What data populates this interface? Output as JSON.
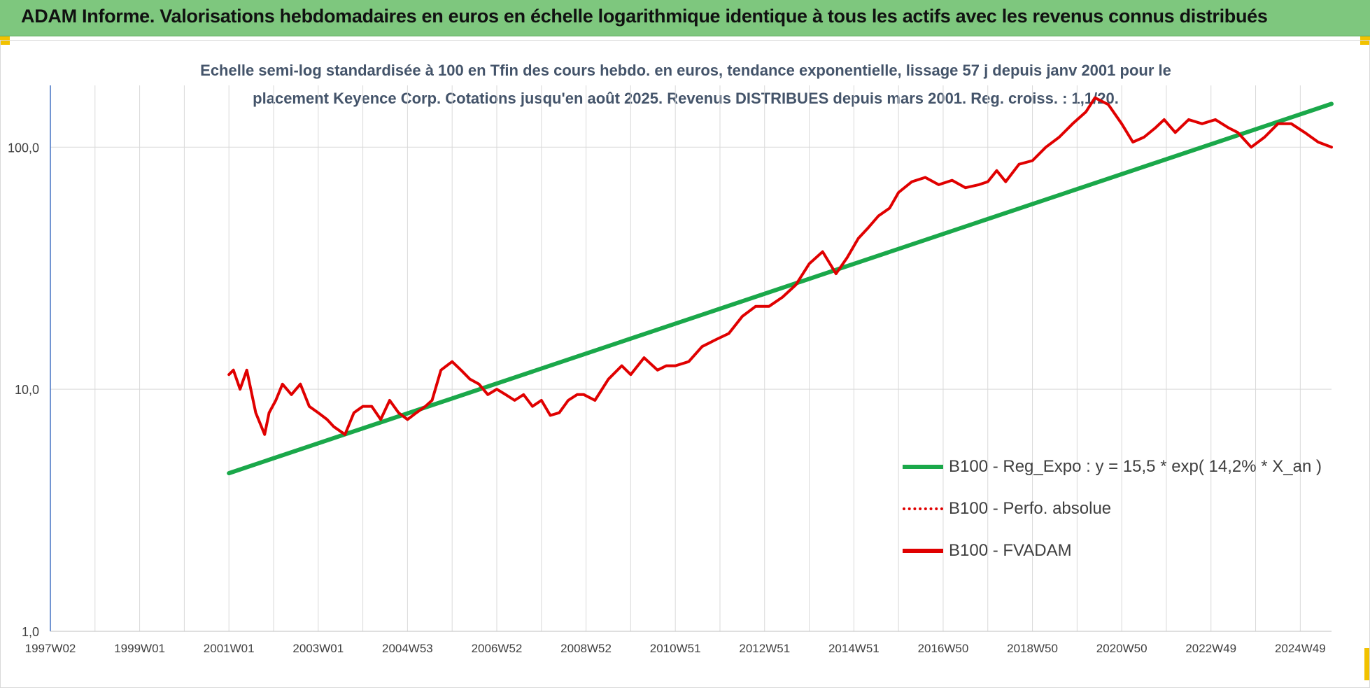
{
  "header": {
    "title": "ADAM Informe. Valorisations hebdomadaires en euros en échelle logarithmique identique à tous les actifs avec les revenus connus distribués"
  },
  "chart_data": {
    "type": "line",
    "title_line1": "Echelle semi-log standardisée à 100 en Tfin des cours hebdo. en euros, tendance exponentielle, lissage 57 j depuis janv 2001 pour le",
    "title_line2": "placement Keyence Corp. Cotations jusqu'en août 2025. Revenus DISTRIBUES depuis mars 2001. Reg. croiss. : 1,1/20.",
    "y_scale": "log",
    "ylim": [
      1,
      180
    ],
    "yticks": [
      1,
      10,
      100
    ],
    "ytick_labels": [
      "1,0",
      "10,0",
      "100,0"
    ],
    "xlim": [
      1997.0,
      2025.7
    ],
    "xticks": [
      1997.0,
      1999.0,
      2001.0,
      2003.0,
      2005.0,
      2007.0,
      2009.0,
      2011.0,
      2013.0,
      2015.0,
      2017.0,
      2019.0,
      2021.0,
      2023.0,
      2025.0
    ],
    "xtick_labels": [
      "1997W02",
      "1999W01",
      "2001W01",
      "2003W01",
      "2004W53",
      "2006W52",
      "2008W52",
      "2010W51",
      "2012W51",
      "2014W51",
      "2016W50",
      "2018W50",
      "2020W50",
      "2022W49",
      "2024W49"
    ],
    "grid": true,
    "legend_position": "right",
    "series": [
      {
        "name": "B100 - Reg_Expo : y = 15,5 * exp( 14,2% *  X_an )",
        "color": "#1aa84a",
        "style": "solid",
        "x": [
          2001.0,
          2025.7
        ],
        "y": [
          4.5,
          151
        ]
      },
      {
        "name": "B100 - Perfo. absolue",
        "color": "#e00000",
        "style": "dotted",
        "x": [],
        "y": []
      },
      {
        "name": "B100 - FVADAM",
        "color": "#e00000",
        "style": "solid",
        "x": [
          2001.0,
          2001.1,
          2001.25,
          2001.4,
          2001.6,
          2001.8,
          2001.9,
          2002.05,
          2002.2,
          2002.4,
          2002.6,
          2002.8,
          2003.0,
          2003.2,
          2003.35,
          2003.6,
          2003.8,
          2004.0,
          2004.2,
          2004.4,
          2004.6,
          2004.8,
          2005.0,
          2005.2,
          2005.4,
          2005.55,
          2005.75,
          2006.0,
          2006.2,
          2006.4,
          2006.6,
          2006.8,
          2007.0,
          2007.2,
          2007.4,
          2007.6,
          2007.8,
          2008.0,
          2008.2,
          2008.4,
          2008.6,
          2008.8,
          2008.95,
          2009.2,
          2009.5,
          2009.8,
          2010.0,
          2010.3,
          2010.6,
          2010.8,
          2011.0,
          2011.3,
          2011.6,
          2011.9,
          2012.2,
          2012.5,
          2012.8,
          2013.1,
          2013.4,
          2013.7,
          2014.0,
          2014.3,
          2014.6,
          2014.85,
          2015.1,
          2015.3,
          2015.55,
          2015.8,
          2016.0,
          2016.3,
          2016.6,
          2016.9,
          2017.2,
          2017.5,
          2017.8,
          2018.0,
          2018.2,
          2018.4,
          2018.7,
          2019.0,
          2019.3,
          2019.6,
          2019.9,
          2020.2,
          2020.4,
          2020.7,
          2021.0,
          2021.25,
          2021.5,
          2021.75,
          2021.95,
          2022.2,
          2022.5,
          2022.8,
          2023.1,
          2023.4,
          2023.6,
          2023.9,
          2024.2,
          2024.5,
          2024.8,
          2025.1,
          2025.4,
          2025.7
        ],
        "y": [
          11.5,
          12,
          10,
          12,
          8,
          6.5,
          8,
          9,
          10.5,
          9.5,
          10.5,
          8.5,
          8,
          7.5,
          7,
          6.5,
          8,
          8.5,
          8.5,
          7.5,
          9,
          8,
          7.5,
          8,
          8.5,
          9,
          12,
          13,
          12,
          11,
          10.5,
          9.5,
          10,
          9.5,
          9,
          9.5,
          8.5,
          9,
          7.8,
          8,
          9,
          9.5,
          9.5,
          9,
          11,
          12.5,
          11.5,
          13.5,
          12,
          12.5,
          12.5,
          13,
          15,
          16,
          17,
          20,
          22,
          22,
          24,
          27,
          33,
          37,
          30,
          35,
          42,
          46,
          52,
          56,
          65,
          72,
          75,
          70,
          73,
          68,
          70,
          72,
          80,
          72,
          85,
          88,
          100,
          110,
          125,
          140,
          160,
          150,
          125,
          105,
          110,
          120,
          130,
          115,
          130,
          125,
          130,
          120,
          115,
          100,
          110,
          125,
          125,
          115,
          105,
          100
        ]
      }
    ]
  }
}
